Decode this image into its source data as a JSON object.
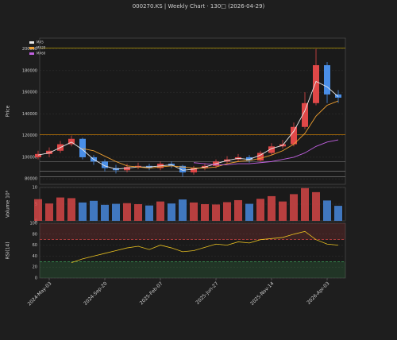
{
  "chart_data": [
    {
      "type": "candlestick",
      "title": "000270.KS  |  Weekly Chart · 130□  (2026-04-29)",
      "ylabel": "Price",
      "categories": [
        null,
        "2024-May-03",
        null,
        null,
        null,
        null,
        "2024-Sep-20",
        null,
        null,
        null,
        null,
        "2025-Feb-07",
        null,
        null,
        null,
        null,
        "2025-Jun-27",
        null,
        null,
        null,
        null,
        "2025-Nov-14",
        null,
        null,
        null,
        null,
        "2026-Apr-03",
        null
      ],
      "open": [
        100000,
        103000,
        106000,
        112000,
        117000,
        100000,
        96000,
        90000,
        88000,
        91000,
        92000,
        90000,
        94000,
        92000,
        86000,
        90000,
        92000,
        96000,
        98000,
        100000,
        97000,
        104000,
        110000,
        112000,
        128000,
        150000,
        185000,
        158000
      ],
      "high": [
        106000,
        109000,
        115000,
        120000,
        118000,
        102000,
        98000,
        93000,
        94000,
        95000,
        94000,
        96000,
        96000,
        93000,
        92000,
        94000,
        98000,
        101000,
        103000,
        102000,
        106000,
        113000,
        116000,
        132000,
        160000,
        200000,
        188000,
        162000
      ],
      "low": [
        98000,
        100000,
        104000,
        110000,
        98000,
        93000,
        87000,
        85000,
        86000,
        89000,
        88000,
        88000,
        90000,
        82000,
        84000,
        88000,
        90000,
        94000,
        96000,
        95000,
        96000,
        102000,
        108000,
        110000,
        126000,
        148000,
        150000,
        150000
      ],
      "close": [
        103000,
        106000,
        112000,
        117000,
        100000,
        96000,
        90000,
        88000,
        91000,
        92000,
        90000,
        94000,
        92000,
        86000,
        90000,
        92000,
        96000,
        98000,
        100000,
        97000,
        104000,
        110000,
        112000,
        128000,
        150000,
        185000,
        158000,
        155000
      ],
      "up_color": "#e04848",
      "down_color": "#4a8fe8",
      "series": [
        {
          "name": "MA5",
          "color": "#e8e8e8",
          "values": [
            102000,
            104000,
            109000,
            114000,
            107000,
            98000,
            92000,
            89000,
            90000,
            91000,
            91000,
            92000,
            93000,
            88000,
            89000,
            91000,
            94000,
            97000,
            99000,
            98000,
            102000,
            108000,
            111000,
            124000,
            143000,
            170000,
            165000,
            156000
          ]
        },
        {
          "name": "MA20",
          "color": "#f0a030",
          "values": [
            null,
            null,
            null,
            null,
            108000,
            106000,
            101000,
            96000,
            92000,
            91000,
            90000,
            91000,
            92000,
            91000,
            90000,
            90000,
            91000,
            94000,
            96000,
            97000,
            99000,
            102000,
            106000,
            112000,
            122000,
            138000,
            148000,
            152000
          ]
        },
        {
          "name": "MA60",
          "color": "#c060e0",
          "values": [
            null,
            null,
            null,
            null,
            null,
            null,
            null,
            null,
            null,
            null,
            null,
            null,
            null,
            null,
            95000,
            94000,
            93000,
            93000,
            94000,
            94000,
            95000,
            96000,
            98000,
            100000,
            104000,
            110000,
            114000,
            116000
          ]
        }
      ],
      "levels": [
        {
          "value": 201000,
          "color": "#d4b000"
        },
        {
          "value": 121000,
          "color": "#e08a00"
        },
        {
          "value": 96000,
          "color": "#888888"
        },
        {
          "value": 87000,
          "color": "#888888"
        },
        {
          "value": 82000,
          "color": "#888888"
        }
      ],
      "ylim": [
        75000,
        210000
      ],
      "yticks": [
        80000,
        100000,
        120000,
        140000,
        160000,
        180000,
        200000
      ],
      "grid": true
    },
    {
      "type": "bar",
      "ylabel": "Volume 10⁶",
      "values": [
        6.5,
        5.2,
        7.0,
        6.8,
        5.5,
        6.0,
        4.8,
        5.1,
        5.3,
        5.0,
        4.6,
        5.8,
        5.2,
        6.4,
        5.5,
        5.0,
        4.9,
        5.6,
        6.2,
        5.1,
        6.6,
        7.4,
        5.8,
        8.0,
        9.8,
        8.6,
        6.1,
        4.5
      ],
      "ylim": [
        0,
        10
      ],
      "yticks": [
        0,
        5,
        10
      ],
      "grid": true
    },
    {
      "type": "line",
      "ylabel": "RSI(14)",
      "color": "#e8c020",
      "values": [
        null,
        null,
        null,
        28,
        35,
        40,
        45,
        50,
        55,
        58,
        52,
        60,
        55,
        48,
        50,
        56,
        62,
        60,
        66,
        64,
        70,
        72,
        74,
        80,
        85,
        70,
        62,
        60
      ],
      "bands": [
        {
          "value": 70,
          "color": "#e04848"
        },
        {
          "value": 30,
          "color": "#40b060"
        }
      ],
      "ylim": [
        0,
        100
      ],
      "yticks": [
        0,
        20,
        40,
        60,
        80,
        100
      ],
      "grid": true
    }
  ]
}
